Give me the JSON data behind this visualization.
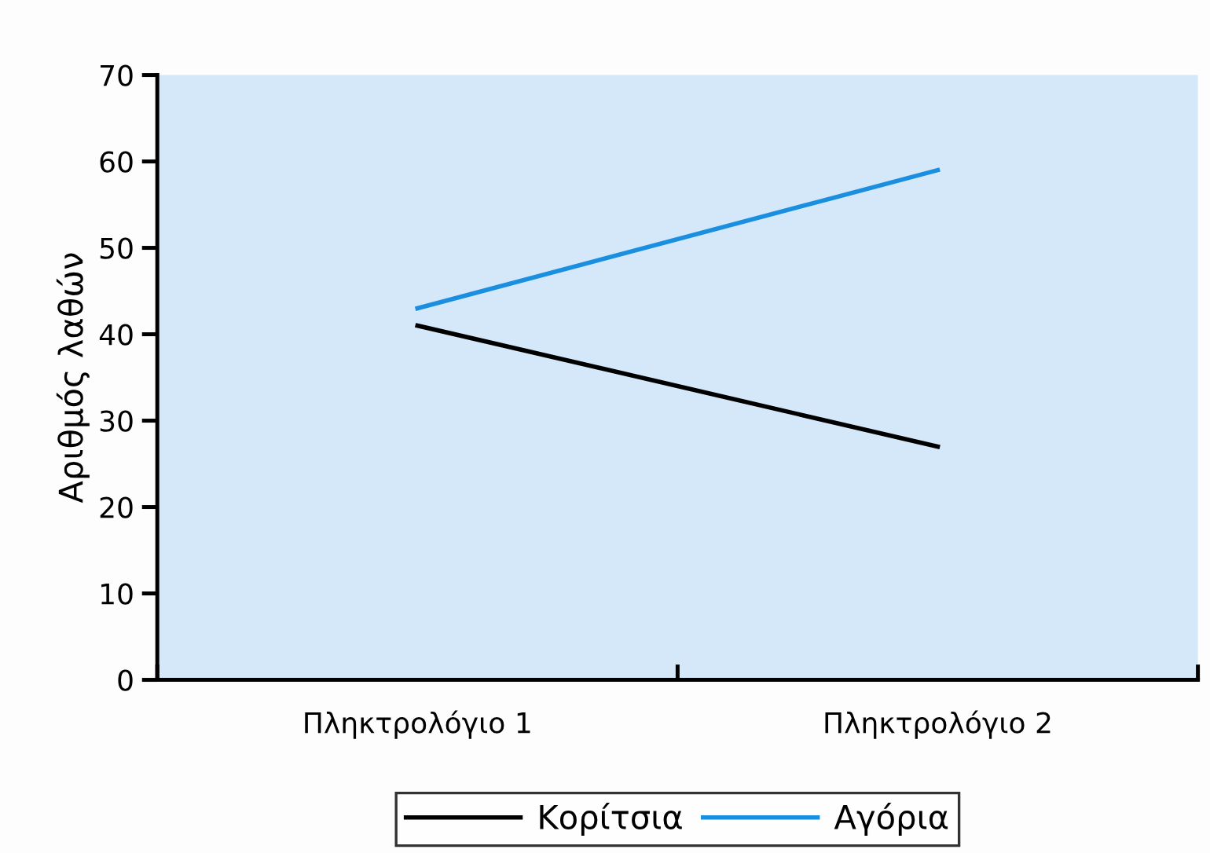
{
  "chart_data": {
    "type": "line",
    "ylabel": "Αριθμός λαθών",
    "categories": [
      "Πληκτρολόγιο 1",
      "Πληκτρολόγιο 2"
    ],
    "series": [
      {
        "name": "Κορίτσια",
        "color": "#000000",
        "values": [
          41,
          27
        ]
      },
      {
        "name": "Αγόρια",
        "color": "#1a8fe0",
        "values": [
          43,
          59
        ]
      }
    ],
    "ylim": [
      0,
      70
    ],
    "yticks": [
      0,
      10,
      20,
      30,
      40,
      50,
      60,
      70
    ],
    "grid": false,
    "legend": "bottom",
    "marker": "none",
    "line_style": "solid"
  }
}
